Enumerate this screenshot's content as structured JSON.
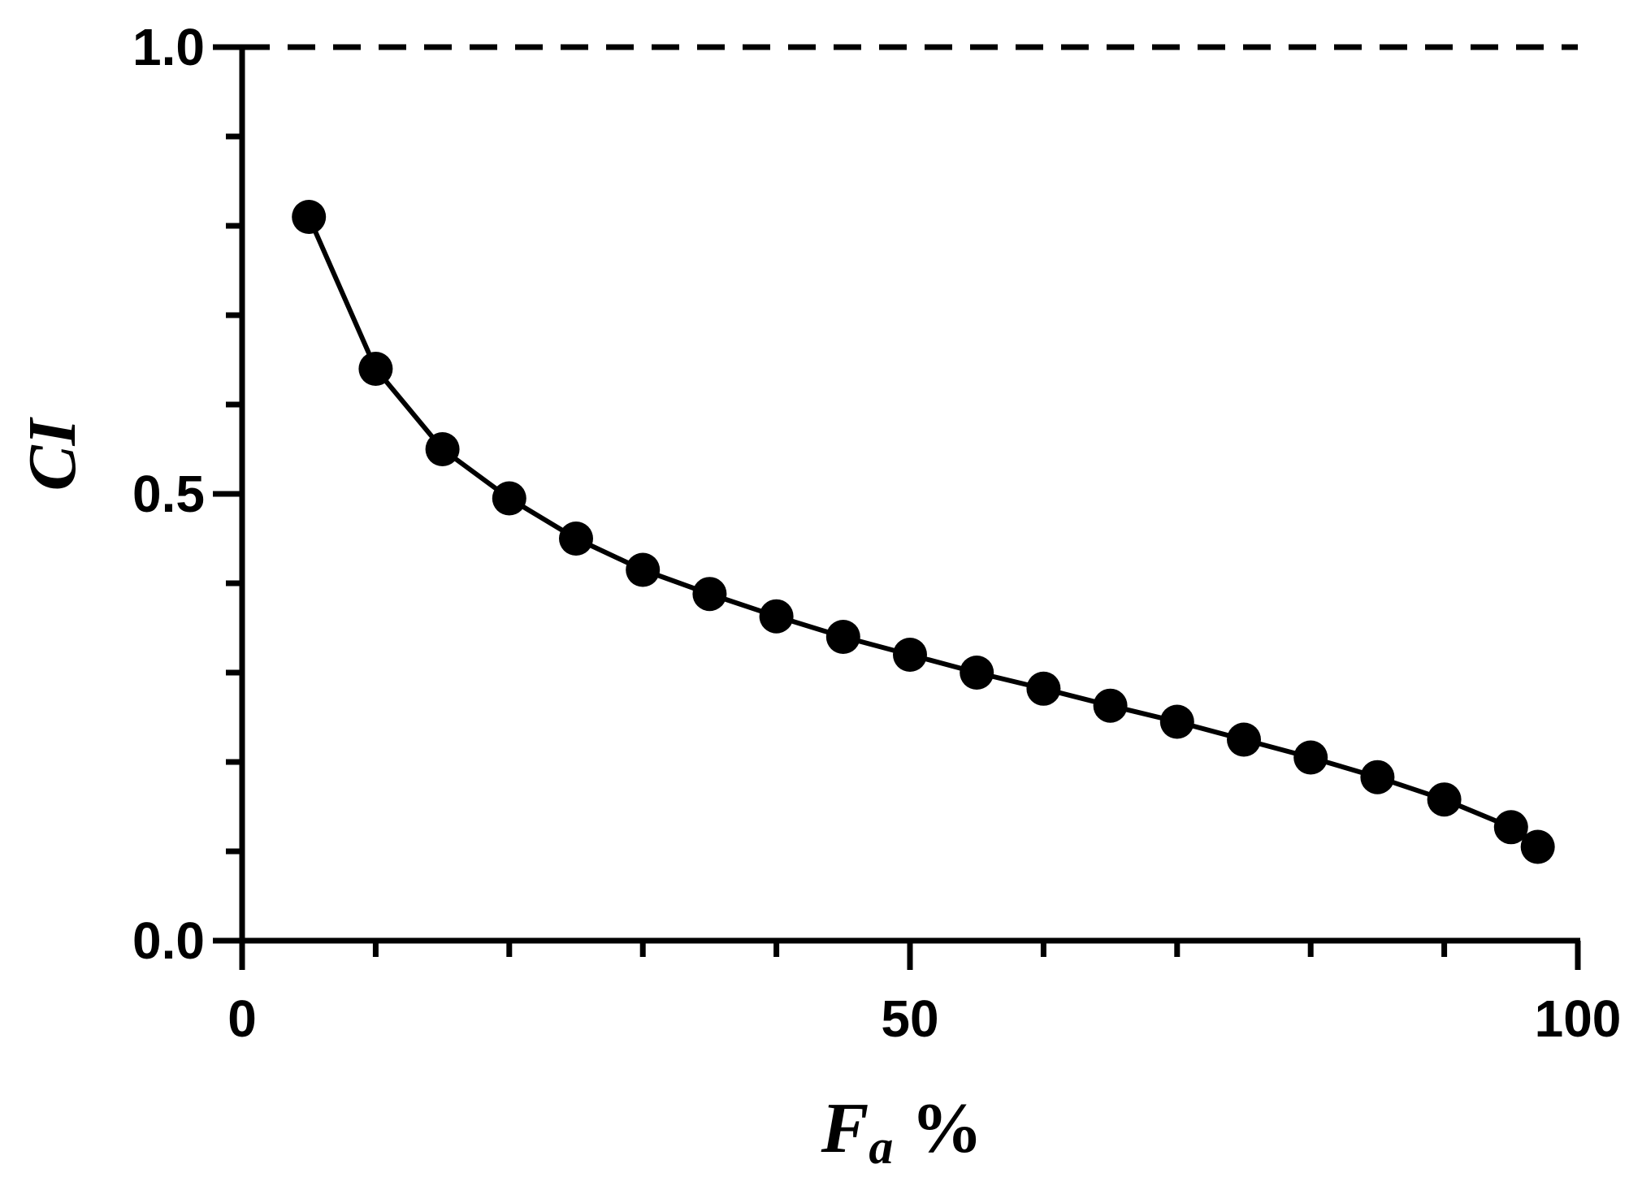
{
  "chart_data": {
    "type": "line",
    "title": "",
    "xlabel": "Fa %",
    "ylabel": "CI",
    "xlabel_parts": {
      "main": "F",
      "subscript": "a",
      "unit": "%"
    },
    "xlim": [
      0,
      100
    ],
    "ylim": [
      0,
      1.0
    ],
    "x_ticks": [
      0,
      50,
      100
    ],
    "x_tick_labels": [
      "0",
      "50",
      "100"
    ],
    "y_ticks": [
      0.0,
      0.5,
      1.0
    ],
    "y_tick_labels": [
      "0.0",
      "0.5",
      "1.0"
    ],
    "grid": false,
    "legend": "none",
    "reference_line": {
      "y": 1.0,
      "style": "dashed"
    },
    "series": [
      {
        "marker": "circle",
        "color": "#000000",
        "x": [
          5,
          10,
          15,
          20,
          25,
          30,
          35,
          40,
          45,
          50,
          55,
          60,
          65,
          70,
          75,
          80,
          85,
          90,
          95,
          97
        ],
        "y": [
          0.81,
          0.64,
          0.55,
          0.495,
          0.45,
          0.415,
          0.388,
          0.363,
          0.34,
          0.32,
          0.3,
          0.282,
          0.263,
          0.245,
          0.225,
          0.205,
          0.183,
          0.158,
          0.127,
          0.105
        ]
      }
    ]
  }
}
